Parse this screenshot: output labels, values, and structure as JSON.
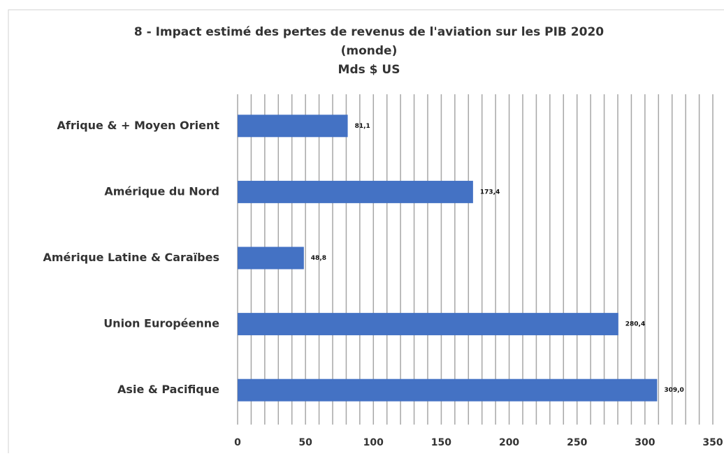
{
  "chart_data": {
    "type": "bar",
    "orientation": "horizontal",
    "title": [
      "8 - Impact estimé des pertes de revenus de l'aviation sur les PIB 2020",
      "(monde)",
      "Mds $ US"
    ],
    "categories": [
      "Afrique & + Moyen Orient",
      "Amérique du Nord",
      "Amérique Latine & Caraïbes",
      "Union Européenne",
      "Asie & Pacifique"
    ],
    "values": [
      81.1,
      173.4,
      48.8,
      280.4,
      309.0
    ],
    "value_labels": [
      "81,1",
      "173,4",
      "48,8",
      "280,4",
      "309,0"
    ],
    "color": "#4472c4",
    "xlim": [
      0,
      350
    ],
    "xticks": [
      0,
      50,
      100,
      150,
      200,
      250,
      300,
      350
    ],
    "minor_xticks": [
      10,
      20,
      30,
      40,
      60,
      70,
      80,
      90,
      110,
      120,
      130,
      140,
      160,
      170,
      180,
      190,
      210,
      220,
      230,
      240,
      260,
      270,
      280,
      290,
      310,
      320,
      330,
      340
    ],
    "grid": true
  }
}
